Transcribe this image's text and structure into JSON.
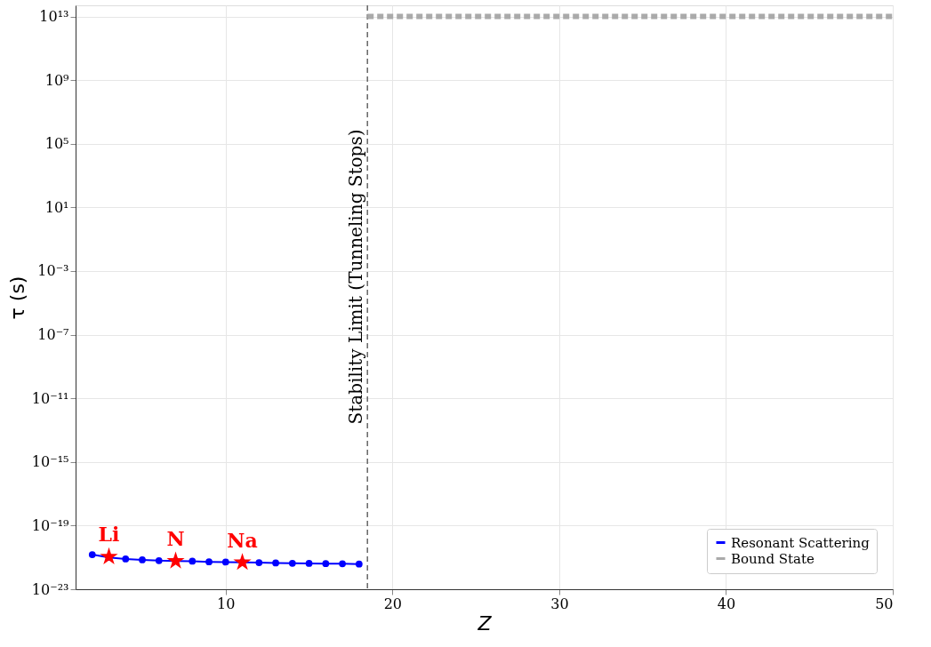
{
  "chart_data": {
    "type": "line",
    "xlabel": "Z",
    "ylabel": "τ (s)",
    "xlim": [
      1,
      50
    ],
    "xticks": [
      10,
      20,
      30,
      40,
      50
    ],
    "ylim": [
      1e-23,
      50000000000000.0
    ],
    "log": "y",
    "yticks": [
      {
        "value": 10000000000000.0,
        "label": "10¹³"
      },
      {
        "value": 1000000000.0,
        "label": "10⁹"
      },
      {
        "value": 100000.0,
        "label": "10⁵"
      },
      {
        "value": 10,
        "label": "10¹"
      },
      {
        "value": 0.001,
        "label": "10⁻³"
      },
      {
        "value": 1e-07,
        "label": "10⁻⁷"
      },
      {
        "value": 1e-11,
        "label": "10⁻¹¹"
      },
      {
        "value": 1e-15,
        "label": "10⁻¹⁵"
      },
      {
        "value": 1e-19,
        "label": "10⁻¹⁹"
      },
      {
        "value": 1e-23,
        "label": "10⁻²³"
      }
    ],
    "grid": true,
    "legend": "bottom right",
    "series": [
      {
        "name": "Resonant Scattering",
        "color": "#0000ff",
        "marker": "circle",
        "line_style": "solid",
        "x": [
          2,
          3,
          4,
          5,
          6,
          7,
          8,
          9,
          10,
          11,
          12,
          13,
          14,
          15,
          16,
          17,
          18
        ],
        "values": [
          1.5e-21,
          1e-21,
          8e-22,
          7e-22,
          6.3e-22,
          6e-22,
          5.8e-22,
          5.3e-22,
          5.1e-22,
          4.9e-22,
          4.7e-22,
          4.5e-22,
          4.3e-22,
          4.2e-22,
          4.1e-22,
          4e-22,
          3.8e-22
        ]
      },
      {
        "name": "Bound State",
        "color": "#aaaaaa",
        "marker": "none",
        "line_style": "dotted",
        "x": [
          18.5,
          50
        ],
        "values": [
          10000000000000.0,
          10000000000000.0
        ]
      },
      {
        "type": "scatter",
        "color": "#ff0000",
        "marker": "star",
        "x": [
          3,
          7,
          11
        ],
        "values": [
          1.1e-21,
          6e-22,
          4.9e-22
        ]
      }
    ],
    "annotations": [
      {
        "text": "Li",
        "x": 3,
        "y": 1.1e-21
      },
      {
        "text": "N",
        "x": 7,
        "y": 6e-22
      },
      {
        "text": "Na",
        "x": 11,
        "y": 4.9e-22
      }
    ],
    "ref_lines": [
      {
        "axis": "x",
        "value": 18.5,
        "label": "Stability Limit (Tunneling Stops)",
        "color": "#666666",
        "line_style": "dashed"
      }
    ]
  }
}
